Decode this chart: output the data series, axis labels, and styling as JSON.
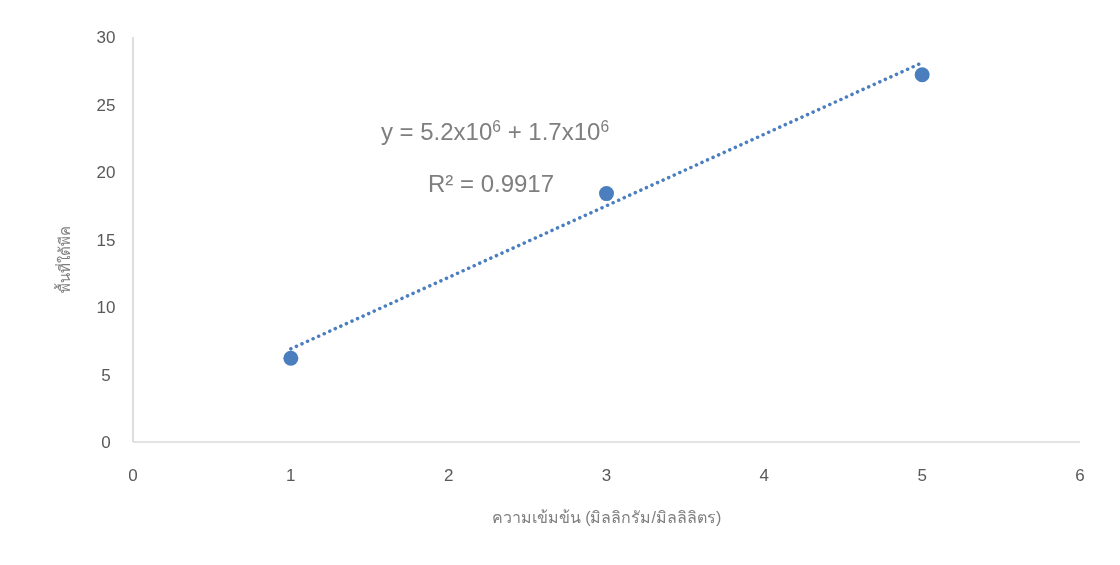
{
  "chart_data": {
    "type": "scatter",
    "xlabel": "ความเข้มข้น (มิลลิกรัม/มิลลิลิตร)",
    "ylabel": "พื้นที่ใต้พีค",
    "xlim": [
      0,
      6
    ],
    "xticks": [
      0,
      1,
      2,
      3,
      4,
      5,
      6
    ],
    "ylim": [
      0,
      30
    ],
    "yticks": [
      0,
      5,
      10,
      15,
      20,
      25,
      30
    ],
    "marker": "circle",
    "series": [
      {
        "color": "#4a7ebf",
        "x": [
          1,
          3,
          5
        ],
        "values": [
          6.2,
          18.4,
          27.2
        ]
      },
      {
        "type": "line",
        "color": "#4a7ebf",
        "line_style": "dotted",
        "marker": "none",
        "x": [
          1,
          5
        ],
        "values": [
          6.9,
          28.1
        ]
      }
    ],
    "annotations": [
      "y = 5.2x10$^{6}$ + 1.7x10$^{6}$",
      "R² = 0.9917"
    ]
  }
}
